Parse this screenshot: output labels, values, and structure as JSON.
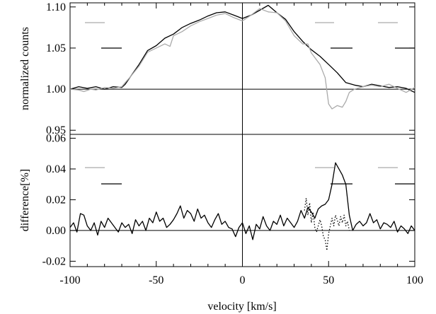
{
  "chart_data": [
    {
      "type": "line",
      "panel": "top",
      "ylabel": "normalized counts",
      "xlim": [
        -100,
        100
      ],
      "ylim": [
        0.945,
        1.105
      ],
      "yticks": [
        {
          "v": 0.95,
          "label": "0.95"
        },
        {
          "v": 1.0,
          "label": "1.00"
        },
        {
          "v": 1.05,
          "label": "1.05"
        },
        {
          "v": 1.1,
          "label": "1.10"
        }
      ],
      "reference_lines": {
        "y": 1.0,
        "x": 0
      },
      "series": [
        {
          "color": "#000000",
          "style": "solid",
          "x": [
            -100,
            -95,
            -90,
            -85,
            -80,
            -75,
            -70,
            -68,
            -65,
            -60,
            -55,
            -50,
            -45,
            -40,
            -35,
            -30,
            -25,
            -20,
            -15,
            -10,
            -5,
            0,
            5,
            10,
            15,
            20,
            25,
            30,
            35,
            40,
            45,
            50,
            55,
            60,
            65,
            70,
            75,
            80,
            85,
            90,
            95,
            100
          ],
          "y": [
            1.0,
            1.003,
            1.001,
            1.003,
            1.0,
            1.003,
            1.002,
            1.006,
            1.015,
            1.03,
            1.047,
            1.053,
            1.062,
            1.067,
            1.075,
            1.08,
            1.084,
            1.089,
            1.093,
            1.094,
            1.09,
            1.086,
            1.09,
            1.096,
            1.102,
            1.093,
            1.085,
            1.07,
            1.058,
            1.048,
            1.04,
            1.03,
            1.02,
            1.008,
            1.005,
            1.003,
            1.006,
            1.004,
            1.002,
            1.003,
            1.001,
            0.996
          ]
        },
        {
          "color": "#aaaaaa",
          "style": "solid",
          "x": [
            -100,
            -95,
            -92,
            -88,
            -85,
            -80,
            -75,
            -70,
            -68,
            -65,
            -60,
            -55,
            -50,
            -45,
            -42,
            -40,
            -35,
            -30,
            -25,
            -20,
            -15,
            -10,
            -5,
            0,
            5,
            10,
            15,
            20,
            25,
            30,
            35,
            38,
            40,
            45,
            48,
            50,
            52,
            55,
            58,
            60,
            62,
            65,
            70,
            75,
            80,
            85,
            90,
            95,
            100
          ],
          "y": [
            1.0,
            0.999,
            0.997,
            1.0,
            0.999,
            1.002,
            1.001,
            1.003,
            1.008,
            1.015,
            1.028,
            1.045,
            1.05,
            1.055,
            1.052,
            1.065,
            1.07,
            1.077,
            1.082,
            1.086,
            1.09,
            1.092,
            1.087,
            1.083,
            1.09,
            1.098,
            1.094,
            1.093,
            1.083,
            1.065,
            1.055,
            1.055,
            1.044,
            1.03,
            1.014,
            0.982,
            0.976,
            0.98,
            0.978,
            0.985,
            0.996,
            1.0,
            1.003,
            1.005,
            1.003,
            1.006,
            1.001,
            0.996,
            1.002
          ]
        }
      ]
    },
    {
      "type": "line",
      "panel": "bottom",
      "xlabel": "velocity [km/s]",
      "ylabel": "difference[%]",
      "xlim": [
        -100,
        100
      ],
      "ylim": [
        -0.0235,
        0.0625
      ],
      "xticks": [
        {
          "v": -100,
          "label": "-100"
        },
        {
          "v": -50,
          "label": "-50"
        },
        {
          "v": 0,
          "label": "0"
        },
        {
          "v": 50,
          "label": "50"
        },
        {
          "v": 100,
          "label": "100"
        }
      ],
      "yticks": [
        {
          "v": -0.02,
          "label": "-0.02"
        },
        {
          "v": 0.0,
          "label": "0.00"
        },
        {
          "v": 0.02,
          "label": "0.02"
        },
        {
          "v": 0.04,
          "label": "0.04"
        },
        {
          "v": 0.06,
          "label": "0.06"
        }
      ],
      "reference_lines": {
        "y": 0.0,
        "x": 0
      },
      "series": [
        {
          "color": "#000000",
          "style": "solid",
          "x": [
            -100,
            -98,
            -96,
            -94,
            -92,
            -90,
            -88,
            -86,
            -84,
            -82,
            -80,
            -78,
            -76,
            -74,
            -72,
            -70,
            -68,
            -66,
            -64,
            -62,
            -60,
            -58,
            -56,
            -54,
            -52,
            -50,
            -48,
            -46,
            -44,
            -42,
            -40,
            -38,
            -36,
            -34,
            -32,
            -30,
            -28,
            -26,
            -24,
            -22,
            -20,
            -18,
            -16,
            -14,
            -12,
            -10,
            -8,
            -6,
            -4,
            -2,
            0,
            2,
            4,
            6,
            8,
            10,
            12,
            14,
            16,
            18,
            20,
            22,
            24,
            26,
            28,
            30,
            32,
            34,
            36,
            38,
            40,
            42,
            44,
            46,
            48,
            50,
            52,
            54,
            55,
            56,
            58,
            60,
            62,
            64,
            66,
            68,
            70,
            72,
            74,
            76,
            78,
            80,
            82,
            84,
            86,
            88,
            90,
            92,
            94,
            96,
            98,
            100
          ],
          "y": [
            0.002,
            0.005,
            -0.001,
            0.011,
            0.01,
            0.003,
            0.0,
            0.005,
            -0.003,
            0.006,
            0.002,
            0.008,
            0.005,
            0.002,
            -0.001,
            0.005,
            0.002,
            0.004,
            -0.002,
            0.007,
            0.003,
            0.006,
            0.0,
            0.008,
            0.005,
            0.012,
            0.006,
            0.008,
            0.002,
            0.004,
            0.007,
            0.011,
            0.016,
            0.008,
            0.013,
            0.011,
            0.006,
            0.014,
            0.008,
            0.01,
            0.005,
            0.002,
            0.007,
            0.011,
            0.004,
            0.006,
            0.002,
            0.001,
            -0.004,
            0.002,
            0.005,
            -0.002,
            0.003,
            -0.006,
            0.004,
            0.001,
            0.009,
            0.003,
            0.0,
            0.006,
            0.004,
            0.01,
            0.003,
            0.008,
            0.005,
            0.002,
            0.006,
            0.013,
            0.008,
            0.015,
            0.012,
            0.008,
            0.014,
            0.016,
            0.017,
            0.02,
            0.03,
            0.044,
            0.042,
            0.04,
            0.036,
            0.03,
            0.01,
            0.0,
            0.004,
            0.006,
            0.003,
            0.005,
            0.011,
            0.005,
            0.007,
            0.001,
            0.005,
            0.004,
            0.002,
            0.006,
            -0.001,
            0.003,
            0.001,
            -0.002,
            0.003,
            0.0
          ]
        },
        {
          "color": "#000000",
          "style": "dotted",
          "x": [
            36,
            37,
            38,
            39,
            40,
            41,
            42,
            43,
            44,
            45,
            46,
            47,
            48,
            49,
            50,
            51,
            52,
            53,
            54,
            55,
            56,
            57,
            58,
            59,
            60,
            61,
            62
          ],
          "y": [
            0.013,
            0.021,
            0.01,
            0.018,
            0.005,
            0.012,
            0.002,
            -0.001,
            0.003,
            0.007,
            0.003,
            -0.004,
            -0.006,
            -0.013,
            -0.002,
            0.003,
            0.008,
            0.003,
            0.01,
            0.007,
            0.003,
            0.009,
            0.005,
            0.01,
            0.003,
            0.006,
            0.0
          ]
        }
      ]
    }
  ]
}
